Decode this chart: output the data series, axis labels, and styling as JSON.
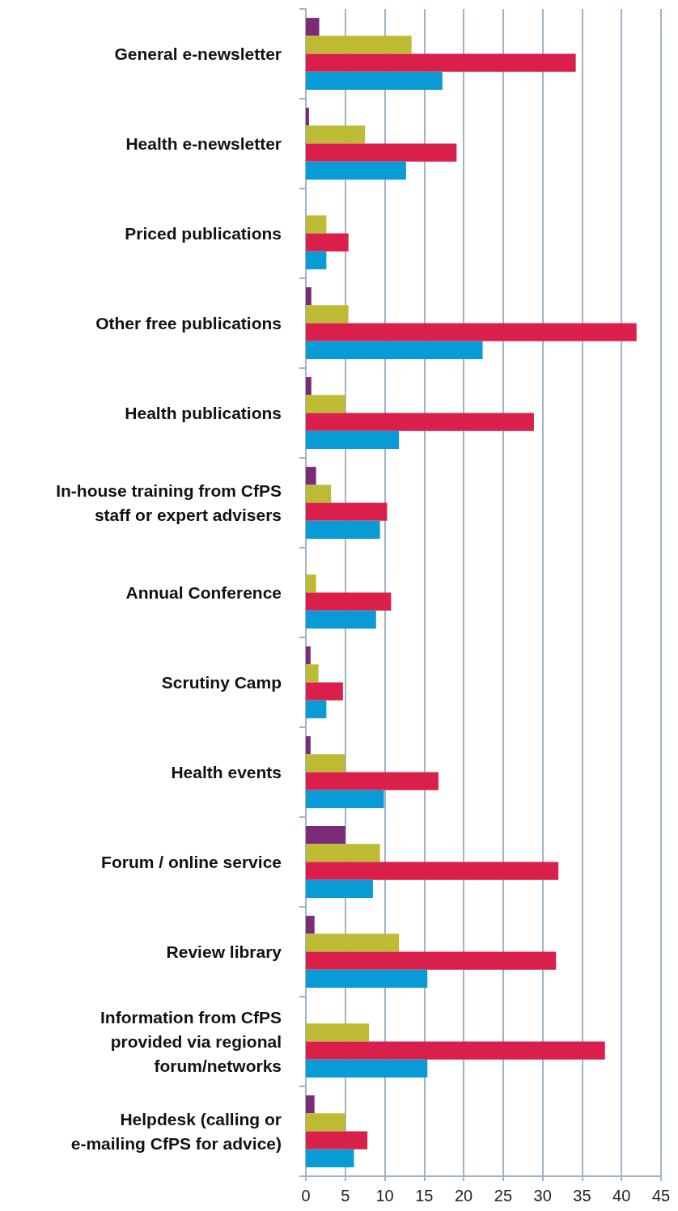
{
  "chart_data": {
    "type": "bar",
    "orientation": "horizontal",
    "categories": [
      "General e-newsletter",
      "Health e-newsletter",
      "Priced publications",
      "Other free publications",
      "Health publications",
      "In-house training from CfPS\nstaff or expert advisers",
      "Annual Conference",
      "Scrutiny Camp",
      "Health events",
      "Forum / online service",
      "Review library",
      "Information from CfPS\nprovided via regional\nforum/networks",
      "Helpdesk (calling or\ne-mailing CfPS for advice)"
    ],
    "series": [
      {
        "color": "#7b2a78",
        "values": [
          1.7,
          0.4,
          0,
          0.7,
          0.7,
          1.3,
          0,
          0.6,
          0.6,
          5.0,
          1.1,
          0,
          1.1
        ]
      },
      {
        "color": "#bdbb33",
        "values": [
          13.4,
          7.5,
          2.6,
          5.4,
          5.0,
          3.2,
          1.3,
          1.6,
          5.0,
          9.4,
          11.8,
          8.0,
          5.0
        ]
      },
      {
        "color": "#d91f4a",
        "values": [
          34.2,
          19.1,
          5.4,
          41.9,
          28.9,
          10.3,
          10.8,
          4.7,
          16.8,
          32.0,
          31.7,
          37.9,
          7.8
        ]
      },
      {
        "color": "#089bd6",
        "values": [
          17.3,
          12.7,
          2.6,
          22.4,
          11.8,
          9.4,
          8.9,
          2.6,
          9.9,
          8.5,
          15.4,
          15.4,
          6.1
        ]
      }
    ],
    "xlim": [
      0,
      45
    ],
    "xticks": [
      0,
      5,
      10,
      15,
      20,
      25,
      30,
      35,
      40,
      45
    ],
    "grid": "x"
  }
}
